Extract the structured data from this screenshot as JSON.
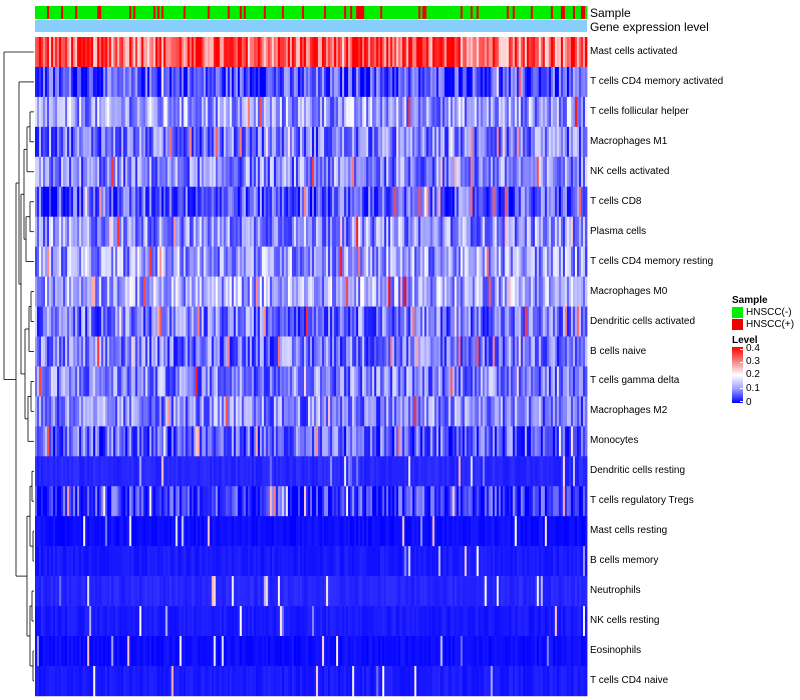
{
  "chart_data": {
    "type": "heatmap",
    "title": "",
    "annotation_tracks": [
      {
        "name": "Sample",
        "categories": [
          "HNSCC(-)",
          "HNSCC(+)"
        ],
        "colors": [
          "#00ee00",
          "#ee0000"
        ]
      },
      {
        "name": "Gene expression level",
        "color": "#87cefa"
      }
    ],
    "n_samples": 275,
    "rows": [
      {
        "label": "Mast cells activated",
        "mean_level": 0.32
      },
      {
        "label": "T cells CD4 memory activated",
        "mean_level": 0.06
      },
      {
        "label": "T cells follicular helper",
        "mean_level": 0.12
      },
      {
        "label": "Macrophages M1",
        "mean_level": 0.09
      },
      {
        "label": "NK cells activated",
        "mean_level": 0.1
      },
      {
        "label": "T cells CD8",
        "mean_level": 0.07
      },
      {
        "label": "Plasma cells",
        "mean_level": 0.11
      },
      {
        "label": "T cells CD4 memory resting",
        "mean_level": 0.12
      },
      {
        "label": "Macrophages M0",
        "mean_level": 0.13
      },
      {
        "label": "Dendritic cells activated",
        "mean_level": 0.09
      },
      {
        "label": "B cells naive",
        "mean_level": 0.09
      },
      {
        "label": "T cells gamma delta",
        "mean_level": 0.1
      },
      {
        "label": "Macrophages M2",
        "mean_level": 0.1
      },
      {
        "label": "Monocytes",
        "mean_level": 0.07
      },
      {
        "label": "Dendritic cells resting",
        "mean_level": 0.03
      },
      {
        "label": "T cells regulatory  Tregs",
        "mean_level": 0.04
      },
      {
        "label": "Mast cells resting",
        "mean_level": 0.01
      },
      {
        "label": "B cells memory",
        "mean_level": 0.02
      },
      {
        "label": "Neutrophils",
        "mean_level": 0.03
      },
      {
        "label": "NK cells resting",
        "mean_level": 0.02
      },
      {
        "label": "Eosinophils",
        "mean_level": 0.01
      },
      {
        "label": "T cells CD4 naive",
        "mean_level": 0.02
      }
    ],
    "color_scale": {
      "min": 0,
      "max": 0.4,
      "stops": [
        "#0000ff",
        "#ffffff",
        "#ff0000"
      ]
    },
    "legend": {
      "sample_title": "Sample",
      "sample_entries": [
        {
          "label": "HNSCC(-)",
          "color": "#00ee00"
        },
        {
          "label": "HNSCC(+)",
          "color": "#ee0000"
        }
      ],
      "level_title": "Level",
      "level_ticks": [
        "0.4",
        "0.3",
        "0.2",
        "0.1",
        "0"
      ],
      "placement": "right"
    },
    "row_dendrogram": true
  }
}
